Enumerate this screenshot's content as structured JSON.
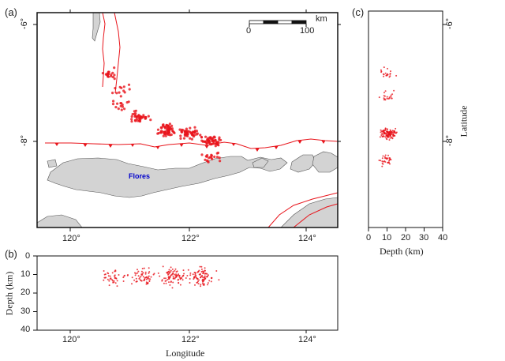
{
  "panels": {
    "a": {
      "letter": "(a)"
    },
    "b": {
      "letter": "(b)"
    },
    "c": {
      "letter": "(c)"
    }
  },
  "map": {
    "place_label": "Flores",
    "lat_labels": [
      "-6°",
      "-8°"
    ],
    "lon_labels": [
      "120°",
      "122°",
      "124°"
    ],
    "scale_bar": {
      "unit": "km",
      "min_label": "0",
      "max_label": "100"
    }
  },
  "depth_lon": {
    "ylabel": "Depth (km)",
    "xlabel": "Longitude",
    "y_ticks": [
      "0",
      "10",
      "20",
      "30",
      "40"
    ],
    "x_ticks": [
      "120°",
      "122°",
      "124°"
    ]
  },
  "depth_lat": {
    "xlabel": "Depth (km)",
    "ylabel": "Latitude",
    "x_ticks": [
      "0",
      "10",
      "20",
      "30",
      "40"
    ],
    "y_ticks": [
      "-6°",
      "-8°"
    ]
  },
  "colors": {
    "events": "#e8141b",
    "faults": "#e8141b",
    "land": "#d3d3d3",
    "coast": "#555555"
  },
  "chart_data": [
    {
      "type": "scatter",
      "title": "",
      "xlabel": "",
      "ylabel": "",
      "xlim": [
        119.5,
        124.6
      ],
      "ylim": [
        -9.0,
        -5.8
      ],
      "clusters": [
        {
          "lon": 120.75,
          "lat": -6.72,
          "n": 18
        },
        {
          "lon": 120.95,
          "lat": -6.95,
          "n": 12
        },
        {
          "lon": 120.95,
          "lat": -7.18,
          "n": 14
        },
        {
          "lon": 121.25,
          "lat": -7.35,
          "n": 40
        },
        {
          "lon": 121.7,
          "lat": -7.55,
          "n": 60
        },
        {
          "lon": 122.1,
          "lat": -7.6,
          "n": 55
        },
        {
          "lon": 122.45,
          "lat": -7.7,
          "n": 55
        },
        {
          "lon": 122.45,
          "lat": -7.95,
          "n": 20
        }
      ]
    },
    {
      "type": "scatter",
      "xlabel": "Longitude",
      "ylabel": "Depth (km)",
      "xlim": [
        119.5,
        124.6
      ],
      "ylim": [
        0,
        40
      ],
      "clusters": [
        {
          "lon": 120.8,
          "depth": 12,
          "n": 40
        },
        {
          "lon": 121.3,
          "depth": 11,
          "n": 60
        },
        {
          "lon": 121.8,
          "depth": 11,
          "n": 80
        },
        {
          "lon": 122.3,
          "depth": 11,
          "n": 90
        }
      ]
    },
    {
      "type": "scatter",
      "xlabel": "Depth (km)",
      "ylabel": "Latitude",
      "xlim": [
        0,
        40
      ],
      "ylim": [
        -9.0,
        -5.8
      ],
      "clusters": [
        {
          "depth": 10,
          "lat": -6.7,
          "n": 20
        },
        {
          "depth": 10,
          "lat": -7.05,
          "n": 20
        },
        {
          "depth": 11,
          "lat": -7.6,
          "n": 120
        },
        {
          "depth": 10,
          "lat": -8.0,
          "n": 30
        }
      ]
    }
  ]
}
